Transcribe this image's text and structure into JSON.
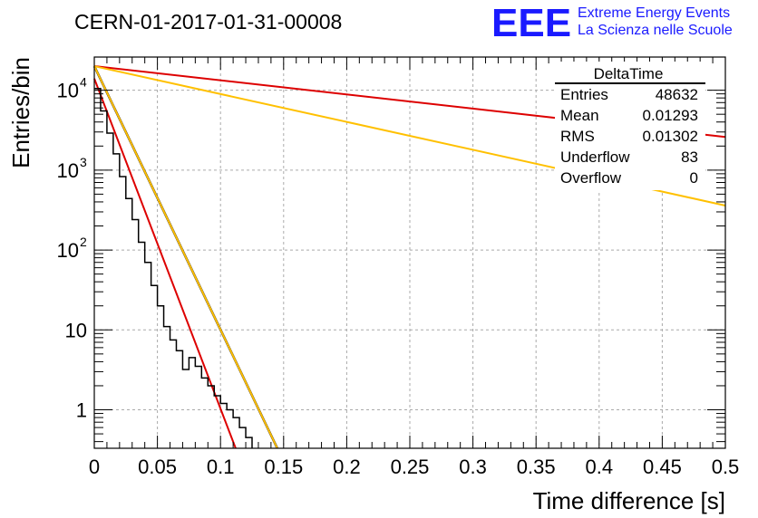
{
  "chart_data": {
    "type": "step-histogram",
    "title": "CERN-01-2017-01-31-00008",
    "xlabel": "Time difference [s]",
    "ylabel": "Entries/bin",
    "xlim": [
      0,
      0.5
    ],
    "ylim": [
      0.33,
      26000
    ],
    "y_scale": "log",
    "grid": true,
    "x_ticks": [
      "0",
      "0.05",
      "0.1",
      "0.15",
      "0.2",
      "0.25",
      "0.3",
      "0.35",
      "0.4",
      "0.45",
      "0.5"
    ],
    "y_ticks": [
      {
        "value": 1,
        "label": "1"
      },
      {
        "value": 10,
        "label": "10"
      },
      {
        "value": 100,
        "label": "10",
        "exp": "2"
      },
      {
        "value": 1000,
        "label": "10",
        "exp": "3"
      },
      {
        "value": 10000,
        "label": "10",
        "exp": "4"
      }
    ],
    "histogram": {
      "bin_width": 0.005,
      "values": [
        10500,
        5500,
        2900,
        1600,
        830,
        440,
        240,
        125,
        70,
        36,
        20,
        11,
        7.5,
        5.5,
        3.2,
        4.5,
        3.5,
        2.5,
        2,
        1.5,
        1.2,
        1,
        0.8,
        0.6,
        0.45
      ]
    },
    "fits": [
      {
        "color": "#000000",
        "width": 2.5,
        "x": [
          0,
          0.145
        ],
        "y": [
          20000,
          0.28
        ]
      },
      {
        "color": "#ffc000",
        "width": 2,
        "x": [
          0,
          0.145
        ],
        "y": [
          20000,
          0.18
        ]
      },
      {
        "color": "#dd0000",
        "width": 2,
        "x": [
          0,
          0.112
        ],
        "y": [
          14000,
          0.33
        ]
      },
      {
        "color": "#dd0000",
        "width": 2,
        "x": [
          0,
          0.5
        ],
        "y": [
          20000,
          2600
        ]
      },
      {
        "color": "#ffc000",
        "width": 2,
        "x": [
          0,
          0.5
        ],
        "y": [
          20000,
          360
        ]
      }
    ]
  },
  "logo": {
    "letters": "EEE",
    "line1": "Extreme Energy Events",
    "line2": "La Scienza nelle Scuole",
    "color": "#1a1aff"
  },
  "stats": {
    "title": "DeltaTime",
    "rows": [
      {
        "label": "Entries",
        "value": "48632"
      },
      {
        "label": "Mean",
        "value": "0.01293"
      },
      {
        "label": "RMS",
        "value": "0.01302"
      },
      {
        "label": "Underflow",
        "value": "83"
      },
      {
        "label": "Overflow",
        "value": "0"
      }
    ]
  }
}
